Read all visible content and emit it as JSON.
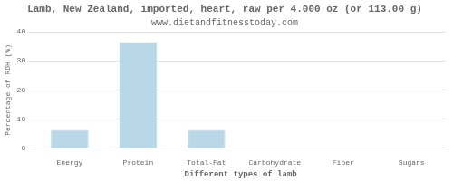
{
  "chart_data": {
    "type": "bar",
    "title": "Lamb, New Zealand, imported, heart, raw per 4.000 oz (or 113.00 g)",
    "subtitle": "www.dietandfitnesstoday.com",
    "categories": [
      "Energy",
      "Protein",
      "Total-Fat",
      "Carbohydrate",
      "Fiber",
      "Sugars"
    ],
    "values": [
      6.3,
      36.5,
      6.3,
      0.2,
      0.0,
      0.0
    ],
    "color": "#b8d8e8",
    "xlabel": "Different types of lamb",
    "ylabel": "Percentage of RDH (%)",
    "ylim": [
      0,
      40
    ],
    "yticks": [
      0,
      10,
      20,
      30,
      40
    ],
    "grid": true
  }
}
